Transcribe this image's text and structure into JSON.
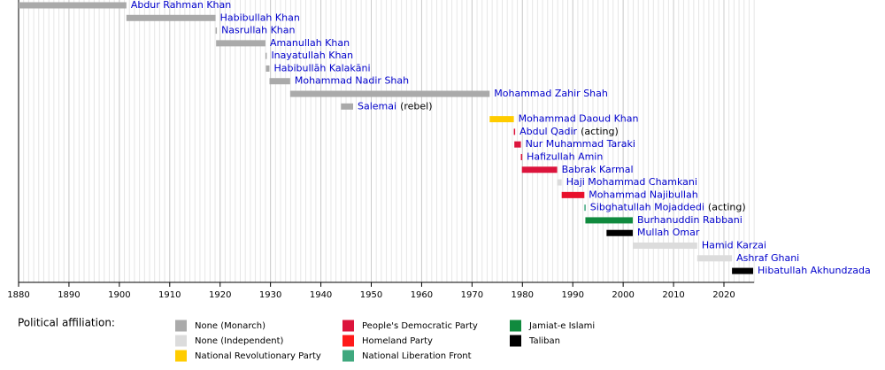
{
  "chart_data": {
    "type": "timeline",
    "xlim": [
      1880,
      2026
    ],
    "xticks": [
      1880,
      1890,
      1900,
      1910,
      1920,
      1930,
      1940,
      1950,
      1960,
      1970,
      1980,
      1990,
      2000,
      2010,
      2020
    ],
    "grid": true,
    "rulers": [
      {
        "name": "Abdur Rahman Khan",
        "start": 1880,
        "end": 1901.4,
        "color": "#aaaaaa"
      },
      {
        "name": "Habibullah Khan",
        "start": 1901.4,
        "end": 1919.1,
        "color": "#aaaaaa"
      },
      {
        "name": "Nasrullah Khan",
        "start": 1919.1,
        "end": 1919.2,
        "color": "#aaaaaa"
      },
      {
        "name": "Amanullah Khan",
        "start": 1919.2,
        "end": 1929,
        "color": "#aaaaaa"
      },
      {
        "name": "Inayatullah Khan",
        "start": 1929,
        "end": 1929.1,
        "color": "#aaaaaa"
      },
      {
        "name": "Habibullāh Kalakāni",
        "start": 1929.1,
        "end": 1929.8,
        "color": "#aaaaaa"
      },
      {
        "name": "Mohammad Nadir Shah",
        "start": 1929.8,
        "end": 1933.9,
        "color": "#aaaaaa"
      },
      {
        "name": "Mohammad Zahir Shah",
        "start": 1933.9,
        "end": 1973.5,
        "color": "#aaaaaa"
      },
      {
        "name": "Salemai",
        "note": "(rebel)",
        "start": 1944,
        "end": 1946.4,
        "color": "#aaaaaa"
      },
      {
        "name": "Mohammad Daoud Khan",
        "start": 1973.5,
        "end": 1978.3,
        "color": "#ffcc00"
      },
      {
        "name": "Abdul Qadir",
        "note": "(acting)",
        "start": 1978.3,
        "end": 1978.4,
        "color": "#dc143c"
      },
      {
        "name": "Nur Muhammad Taraki",
        "start": 1978.4,
        "end": 1979.7,
        "color": "#dc143c"
      },
      {
        "name": "Hafizullah Amin",
        "start": 1979.7,
        "end": 1979.9,
        "color": "#dc143c"
      },
      {
        "name": "Babrak Karmal",
        "start": 1979.9,
        "end": 1986.9,
        "color": "#dc143c"
      },
      {
        "name": "Haji Mohammad Chamkani",
        "start": 1986.9,
        "end": 1987.8,
        "color": "#dcdcdc"
      },
      {
        "name": "Mohammad Najibullah",
        "start": 1987.8,
        "end": 1992.3,
        "color": "#e8102b"
      },
      {
        "name": "Sibghatullah Mojaddedi",
        "note": "(acting)",
        "start": 1992.3,
        "end": 1992.5,
        "color": "#3fa87e"
      },
      {
        "name": "Burhanuddin Rabbani",
        "start": 1992.5,
        "end": 2001.9,
        "color": "#108a3e"
      },
      {
        "name": "Mullah Omar",
        "start": 1996.7,
        "end": 2001.9,
        "color": "#000000"
      },
      {
        "name": "Hamid Karzai",
        "start": 2001.9,
        "end": 2014.7,
        "color": "#dcdcdc"
      },
      {
        "name": "Ashraf Ghani",
        "start": 2014.7,
        "end": 2021.6,
        "color": "#dcdcdc"
      },
      {
        "name": "Hibatullah Akhundzada",
        "start": 2021.6,
        "end": 2025.8,
        "color": "#000000"
      }
    ],
    "legend_title": "Political affiliation:",
    "legend": [
      {
        "name": "None (Monarch)",
        "color": "#aaaaaa"
      },
      {
        "name": "None (Independent)",
        "color": "#dcdcdc"
      },
      {
        "name": "National Revolutionary Party",
        "color": "#ffcc00"
      },
      {
        "name": "People's Democratic Party",
        "color": "#dc143c"
      },
      {
        "name": "Homeland Party",
        "color": "#ff1a1a"
      },
      {
        "name": "National Liberation Front",
        "color": "#3fa87e"
      },
      {
        "name": "Jamiat-e Islami",
        "color": "#108a3e"
      },
      {
        "name": "Taliban",
        "color": "#000000"
      }
    ]
  }
}
